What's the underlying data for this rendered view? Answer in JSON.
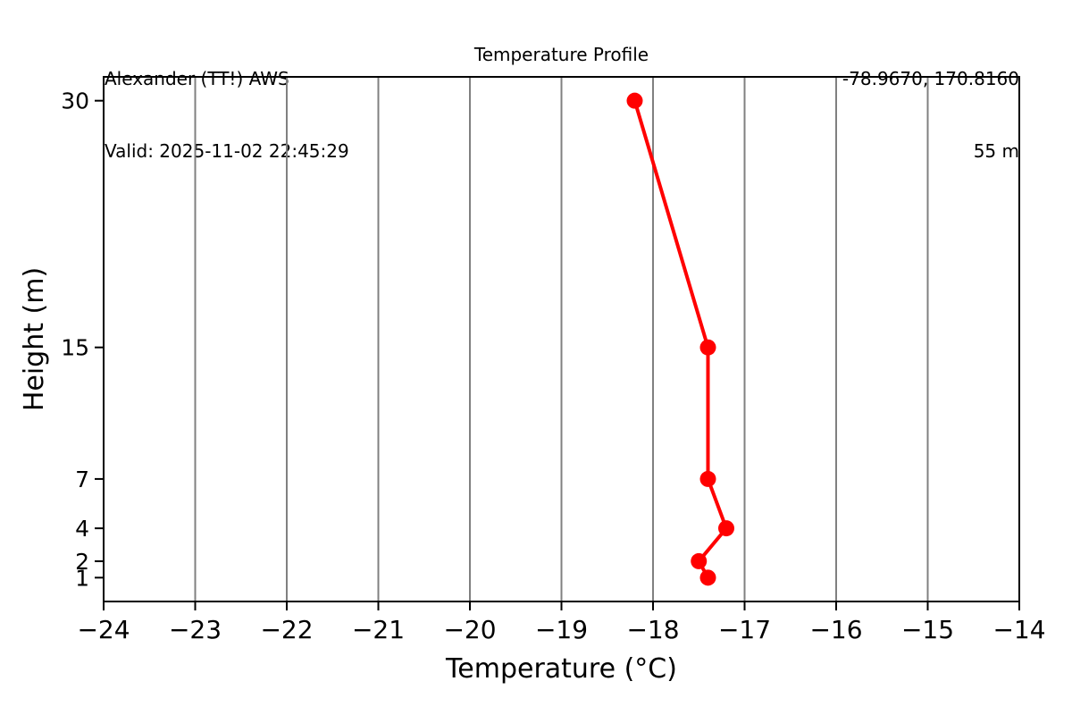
{
  "header": {
    "station_name": "Alexander (TT!) AWS",
    "valid": "Valid: 2025-11-02 22:45:29",
    "coordinates": "-78.9670, 170.8160",
    "elevation": "55 m"
  },
  "chart_data": {
    "type": "line",
    "title": "Temperature Profile",
    "xlabel": "Temperature (°C)",
    "ylabel": "Height (m)",
    "xlim": [
      -24,
      -14
    ],
    "ylim": [
      -0.45,
      31.45
    ],
    "xticks": {
      "values": [
        -24,
        -23,
        -22,
        -21,
        -20,
        -19,
        -18,
        -17,
        -16,
        -15,
        -14
      ],
      "labels": [
        "−24",
        "−23",
        "−22",
        "−21",
        "−20",
        "−19",
        "−18",
        "−17",
        "−16",
        "−15",
        "−14"
      ]
    },
    "yticks": {
      "values": [
        1,
        2,
        4,
        7,
        15,
        30
      ],
      "labels": [
        "1",
        "2",
        "4",
        "7",
        "15",
        "30"
      ]
    },
    "grid": {
      "axis": "x",
      "color": "#808080"
    },
    "legend": "none",
    "series": [
      {
        "name": "temperature-profile",
        "color": "#ff0000",
        "marker": "circle",
        "heights_m": [
          1,
          2,
          4,
          7,
          15,
          30
        ],
        "temps_c": [
          -17.4,
          -17.5,
          -17.2,
          -17.4,
          -17.4,
          -18.2
        ]
      }
    ]
  }
}
